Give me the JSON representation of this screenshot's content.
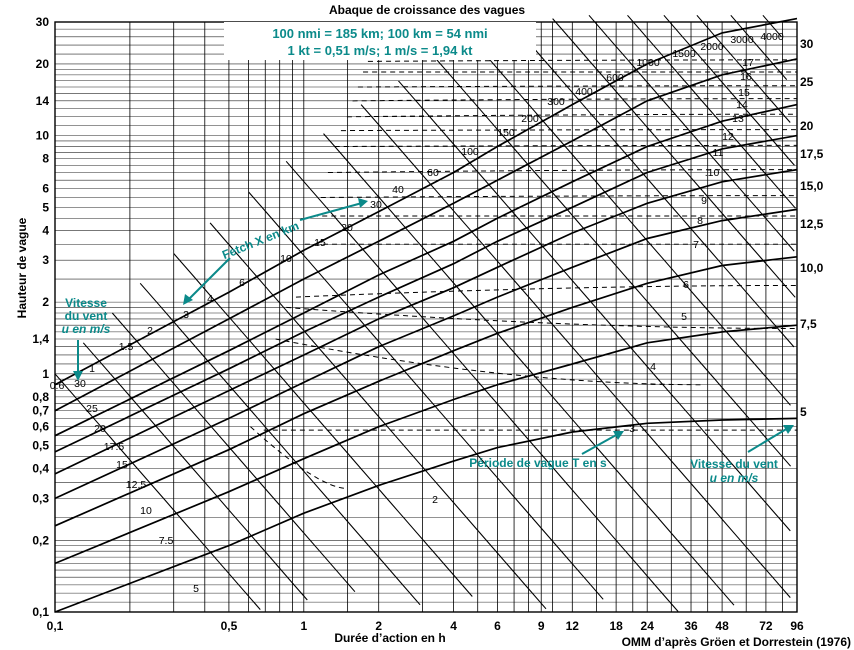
{
  "chart_data": {
    "type": "line",
    "title": "Abaque de croissance des vagues",
    "xlabel": "Durée d’action en h",
    "ylabel": "Hauteur de vague",
    "x_scale": "log",
    "y_scale": "log",
    "xlim": [
      0.1,
      96
    ],
    "ylim": [
      0.1,
      30
    ],
    "x_ticks": [
      "0,1",
      "0,5",
      "1",
      "2",
      "4",
      "6",
      "9",
      "12",
      "18",
      "24",
      "36",
      "48",
      "72",
      "96"
    ],
    "y_ticks": [
      "0,1",
      "0,2",
      "0,3",
      "0,4",
      "0,5",
      "0,6",
      "0,7",
      "0,8",
      "1",
      "1,4",
      "2",
      "3",
      "4",
      "5",
      "6",
      "8",
      "10",
      "14",
      "20",
      "30"
    ],
    "wind_speed_labels_right": [
      "30",
      "25",
      "20",
      "17,5",
      "15,0",
      "12,5",
      "10,0",
      "7,5",
      "5"
    ],
    "wind_speed_labels_left": [
      "30",
      "25",
      "20",
      "17.5",
      "15",
      "12.5",
      "10",
      "7.5",
      "5"
    ],
    "fetch_labels": [
      "0.6",
      "1",
      "1.5",
      "2",
      "3",
      "4",
      "6",
      "10",
      "15",
      "20",
      "30",
      "40",
      "60",
      "100",
      "150",
      "200",
      "300",
      "400",
      "600",
      "1000",
      "1500",
      "2000",
      "3000",
      "4000"
    ],
    "period_labels": [
      "2",
      "3",
      "4",
      "5",
      "6",
      "7",
      "8",
      "9",
      ".10",
      "11",
      "12",
      "13",
      "14",
      "15",
      "16",
      "17"
    ],
    "series": [
      {
        "name": "30",
        "x": [
          0.1,
          0.5,
          1,
          2,
          4,
          6,
          12,
          24,
          48,
          96
        ],
        "y": [
          0.9,
          2.2,
          3.3,
          4.8,
          7.0,
          9.0,
          13.5,
          20,
          27,
          31
        ]
      },
      {
        "name": "25",
        "x": [
          0.1,
          0.5,
          1,
          2,
          4,
          6,
          12,
          24,
          48,
          96
        ],
        "y": [
          0.7,
          1.7,
          2.5,
          3.6,
          5.2,
          6.5,
          9.5,
          14,
          18,
          21
        ]
      },
      {
        "name": "20",
        "x": [
          0.1,
          0.5,
          1,
          2,
          4,
          6,
          12,
          24,
          48,
          96
        ],
        "y": [
          0.55,
          1.25,
          1.8,
          2.6,
          3.6,
          4.5,
          6.4,
          9.0,
          11.5,
          13.5
        ]
      },
      {
        "name": "17,5",
        "x": [
          0.1,
          0.5,
          1,
          2,
          4,
          6,
          12,
          24,
          48,
          96
        ],
        "y": [
          0.47,
          1.05,
          1.5,
          2.1,
          2.9,
          3.6,
          5.0,
          7.0,
          8.8,
          10.0
        ]
      },
      {
        "name": "15,0",
        "x": [
          0.1,
          0.5,
          1,
          2,
          4,
          6,
          12,
          24,
          48,
          96
        ],
        "y": [
          0.38,
          0.85,
          1.2,
          1.7,
          2.3,
          2.8,
          3.9,
          5.2,
          6.4,
          7.2
        ]
      },
      {
        "name": "12,5",
        "x": [
          0.1,
          0.5,
          1,
          2,
          4,
          6,
          12,
          24,
          48,
          96
        ],
        "y": [
          0.3,
          0.65,
          0.92,
          1.3,
          1.75,
          2.1,
          2.8,
          3.7,
          4.4,
          4.9
        ]
      },
      {
        "name": "10,0",
        "x": [
          0.1,
          0.5,
          1,
          2,
          4,
          6,
          12,
          24,
          48,
          96
        ],
        "y": [
          0.23,
          0.48,
          0.68,
          0.93,
          1.25,
          1.48,
          1.9,
          2.4,
          2.85,
          3.1
        ]
      },
      {
        "name": "7,5",
        "x": [
          0.1,
          0.5,
          1,
          2,
          4,
          6,
          12,
          24,
          48,
          96
        ],
        "y": [
          0.16,
          0.32,
          0.44,
          0.6,
          0.78,
          0.9,
          1.1,
          1.35,
          1.5,
          1.6
        ]
      },
      {
        "name": "5",
        "x": [
          0.1,
          0.5,
          1,
          2,
          4,
          6,
          12,
          24,
          48,
          96
        ],
        "y": [
          0.1,
          0.19,
          0.26,
          0.34,
          0.43,
          0.49,
          0.57,
          0.62,
          0.64,
          0.65
        ]
      }
    ]
  },
  "header": {
    "title": "Abaque de croissance des vagues",
    "conv_line1": "100 nmi = 185 km; 100 km = 54 nmi",
    "conv_line2": "1 kt = 0,51 m/s; 1 m/s = 1,94 kt"
  },
  "annotations": {
    "fetch": "Fetch X en km",
    "wind_left_1": "Vitesse",
    "wind_left_2": "du vent",
    "wind_left_3": "u en m/s",
    "period": "Période de vague T en s",
    "wind_right_1": "Vitesse du vent",
    "wind_right_2": "u en m/s"
  },
  "footer": {
    "source": "OMM d’après Gröen et Dorrestein (1976)"
  },
  "colors": {
    "annotation": "#0b8a8a",
    "ink": "#000000"
  }
}
